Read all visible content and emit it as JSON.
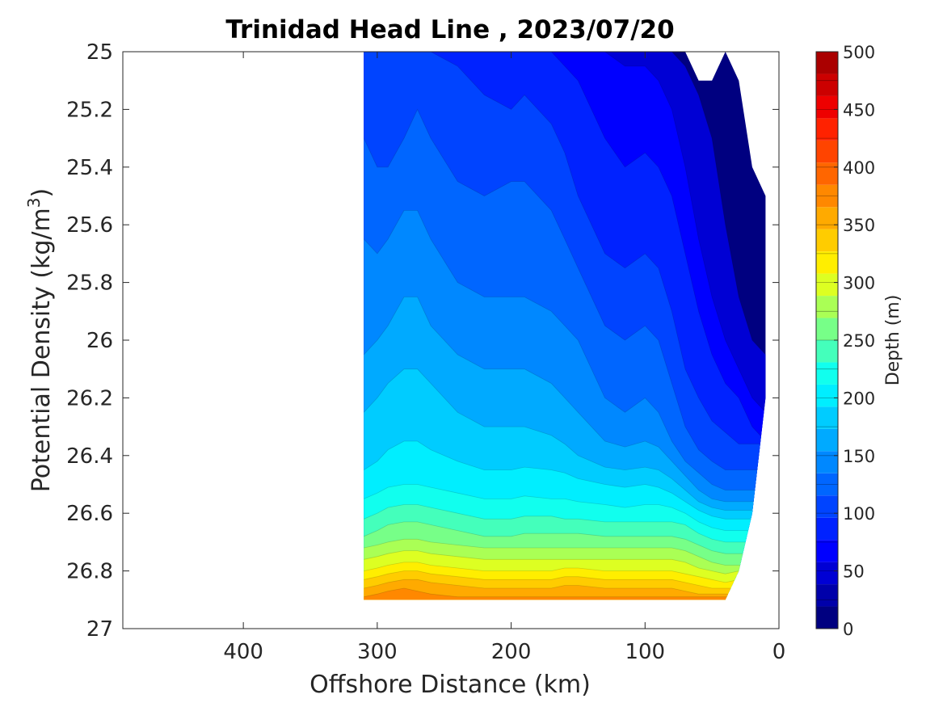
{
  "chart_data": {
    "type": "heatmap",
    "subtype": "filled-contour",
    "title": "Trinidad Head Line , 2023/07/20",
    "xlabel": "Offshore Distance (km)",
    "ylabel_main": "Potential Density (kg/m",
    "ylabel_sup": "3",
    "ylabel_close": ")",
    "colorbar_label": "Depth (m)",
    "xlim": [
      490,
      0
    ],
    "x_reversed": true,
    "ylim": [
      25,
      27
    ],
    "y_reversed": true,
    "xticks": [
      400,
      300,
      200,
      100,
      0
    ],
    "xtick_labels": [
      "400",
      "300",
      "200",
      "100",
      "0"
    ],
    "yticks": [
      25,
      25.2,
      25.4,
      25.6,
      25.8,
      26,
      26.2,
      26.4,
      26.6,
      26.8,
      27
    ],
    "ytick_labels": [
      "25",
      "25.2",
      "25.4",
      "25.6",
      "25.8",
      "26",
      "26.2",
      "26.4",
      "26.6",
      "26.8",
      "27"
    ],
    "colorbar_ticks": [
      0,
      50,
      100,
      150,
      200,
      250,
      300,
      350,
      400,
      450,
      500
    ],
    "colorbar_tick_labels": [
      "0",
      "50",
      "100",
      "150",
      "200",
      "250",
      "300",
      "350",
      "400",
      "450",
      "500"
    ],
    "colorbar_range": [
      0,
      500
    ],
    "contour_levels": [
      0,
      25,
      50,
      75,
      100,
      125,
      150,
      175,
      200,
      225,
      250,
      275,
      300,
      325,
      350,
      375,
      400,
      425,
      450,
      475,
      500
    ],
    "colormap": [
      "#000080",
      "#0000aa",
      "#0000d4",
      "#0000ff",
      "#0022ff",
      "#0044ff",
      "#0066ff",
      "#0088ff",
      "#00aaff",
      "#00ccff",
      "#00eeff",
      "#11ffee",
      "#44ffbb",
      "#77ff88",
      "#aaff55",
      "#ddff22",
      "#ffee00",
      "#ffcc00",
      "#ffaa00",
      "#ff8800",
      "#ff6600",
      "#ff4400",
      "#ff2200",
      "#ee0000",
      "#cc0000",
      "#aa0000"
    ],
    "grid": false,
    "colorbar_position": "right",
    "station_distances_km": [
      310,
      300,
      292,
      280,
      270,
      260,
      240,
      220,
      200,
      190,
      170,
      160,
      150,
      130,
      115,
      100,
      90,
      80,
      70,
      60,
      50,
      40,
      30,
      20,
      10
    ],
    "domain_top_density": [
      25,
      25,
      25,
      25,
      25,
      25,
      25,
      25,
      25,
      25,
      25,
      25,
      25,
      25,
      25,
      25,
      25,
      25,
      25,
      25.1,
      25.1,
      25,
      25.1,
      25.4,
      25.5
    ],
    "domain_bottom_density": [
      26.9,
      26.9,
      26.9,
      26.9,
      26.9,
      26.9,
      26.9,
      26.9,
      26.9,
      26.9,
      26.9,
      26.9,
      26.9,
      26.9,
      26.9,
      26.9,
      26.9,
      26.9,
      26.9,
      26.9,
      26.9,
      26.9,
      26.8,
      26.6,
      26.2
    ],
    "isopleths": [
      {
        "depth": 25,
        "density": [
          null,
          null,
          null,
          null,
          null,
          null,
          null,
          null,
          null,
          null,
          null,
          null,
          null,
          null,
          null,
          null,
          null,
          null,
          null,
          null,
          null,
          null,
          null,
          null,
          null
        ]
      },
      {
        "depth": 50,
        "density": [
          null,
          null,
          null,
          null,
          null,
          null,
          null,
          null,
          null,
          null,
          null,
          null,
          null,
          null,
          25.0,
          25.0,
          25.0,
          25.0,
          25.05,
          25.15,
          25.3,
          25.6,
          25.85,
          26.0,
          26.05
        ]
      },
      {
        "depth": 75,
        "density": [
          null,
          null,
          null,
          null,
          null,
          null,
          null,
          null,
          null,
          null,
          null,
          null,
          null,
          25.0,
          25.05,
          25.05,
          25.1,
          25.2,
          25.4,
          25.65,
          25.85,
          26.0,
          26.1,
          26.2,
          26.25
        ]
      },
      {
        "depth": 100,
        "density": [
          null,
          null,
          null,
          null,
          null,
          null,
          null,
          null,
          null,
          null,
          25.0,
          25.05,
          25.1,
          25.3,
          25.4,
          25.35,
          25.4,
          25.5,
          25.7,
          25.9,
          26.05,
          26.15,
          26.2,
          26.3,
          26.35
        ]
      },
      {
        "depth": 125,
        "density": [
          null,
          null,
          null,
          null,
          null,
          25.0,
          25.05,
          25.15,
          25.2,
          25.15,
          25.25,
          25.35,
          25.5,
          25.7,
          25.75,
          25.7,
          25.75,
          25.9,
          26.1,
          26.2,
          26.28,
          26.32,
          26.36,
          null,
          null
        ]
      },
      {
        "depth": 150,
        "density": [
          25.3,
          25.4,
          25.4,
          25.3,
          25.2,
          25.3,
          25.45,
          25.5,
          25.45,
          25.45,
          25.55,
          25.65,
          25.75,
          25.95,
          26.0,
          25.95,
          26.0,
          26.15,
          26.3,
          26.38,
          26.42,
          26.45,
          26.45,
          null,
          null
        ]
      },
      {
        "depth": 175,
        "density": [
          25.65,
          25.7,
          25.65,
          25.55,
          25.55,
          25.65,
          25.8,
          25.85,
          25.85,
          25.85,
          25.9,
          25.95,
          26.0,
          26.2,
          26.25,
          26.2,
          26.25,
          26.35,
          26.42,
          26.46,
          26.5,
          26.52,
          26.52,
          null,
          null
        ]
      },
      {
        "depth": 200,
        "density": [
          26.05,
          26.0,
          25.95,
          25.85,
          25.85,
          25.95,
          26.05,
          26.1,
          26.1,
          26.1,
          26.15,
          26.2,
          26.25,
          26.35,
          26.37,
          26.35,
          26.37,
          26.42,
          26.47,
          26.52,
          26.55,
          26.56,
          26.56,
          null,
          null
        ]
      },
      {
        "depth": 225,
        "density": [
          26.25,
          26.2,
          26.15,
          26.1,
          26.1,
          26.15,
          26.25,
          26.3,
          26.3,
          26.3,
          26.33,
          26.36,
          26.4,
          26.44,
          26.45,
          26.44,
          26.45,
          26.48,
          26.52,
          26.56,
          26.58,
          26.59,
          26.59,
          null,
          null
        ]
      },
      {
        "depth": 250,
        "density": [
          26.45,
          26.42,
          26.38,
          26.35,
          26.35,
          26.38,
          26.42,
          26.45,
          26.45,
          26.44,
          26.45,
          26.46,
          26.48,
          26.5,
          26.51,
          26.5,
          26.51,
          26.53,
          26.56,
          26.59,
          26.61,
          26.62,
          26.62,
          null,
          null
        ]
      },
      {
        "depth": 275,
        "density": [
          26.55,
          26.53,
          26.51,
          26.5,
          26.5,
          26.51,
          26.53,
          26.55,
          26.55,
          26.54,
          26.55,
          26.55,
          26.56,
          26.57,
          26.58,
          26.57,
          26.57,
          26.58,
          26.6,
          26.63,
          26.65,
          26.66,
          26.66,
          null,
          null
        ]
      },
      {
        "depth": 300,
        "density": [
          26.62,
          26.6,
          26.58,
          26.57,
          26.57,
          26.58,
          26.6,
          26.62,
          26.62,
          26.61,
          26.61,
          26.62,
          26.62,
          26.63,
          26.63,
          26.63,
          26.63,
          26.63,
          26.64,
          26.67,
          26.69,
          26.7,
          26.7,
          null,
          null
        ]
      },
      {
        "depth": 325,
        "density": [
          26.68,
          26.66,
          26.64,
          26.63,
          26.63,
          26.64,
          26.66,
          26.68,
          26.68,
          26.67,
          26.67,
          26.67,
          26.67,
          26.68,
          26.68,
          26.68,
          26.68,
          26.68,
          26.69,
          26.71,
          26.73,
          26.74,
          26.74,
          null,
          null
        ]
      },
      {
        "depth": 350,
        "density": [
          26.72,
          26.71,
          26.7,
          26.69,
          26.69,
          26.7,
          26.71,
          26.72,
          26.72,
          26.72,
          26.72,
          26.72,
          26.72,
          26.72,
          26.72,
          26.72,
          26.72,
          26.72,
          26.73,
          26.75,
          26.77,
          26.78,
          26.78,
          null,
          null
        ]
      },
      {
        "depth": 375,
        "density": [
          26.76,
          26.75,
          26.74,
          26.73,
          26.73,
          26.74,
          26.75,
          26.76,
          26.76,
          26.76,
          26.76,
          26.76,
          26.76,
          26.76,
          26.76,
          26.76,
          26.76,
          26.76,
          26.77,
          26.79,
          26.8,
          26.81,
          26.8,
          null,
          null
        ]
      },
      {
        "depth": 400,
        "density": [
          26.8,
          26.79,
          26.78,
          26.77,
          26.77,
          26.78,
          26.79,
          26.8,
          26.8,
          26.8,
          26.8,
          26.79,
          26.79,
          26.8,
          26.8,
          26.8,
          26.8,
          26.8,
          26.81,
          26.82,
          26.83,
          26.84,
          26.83,
          null,
          null
        ]
      },
      {
        "depth": 425,
        "density": [
          26.83,
          26.82,
          26.81,
          26.8,
          26.8,
          26.81,
          26.82,
          26.83,
          26.83,
          26.83,
          26.83,
          26.82,
          26.82,
          26.83,
          26.83,
          26.83,
          26.83,
          26.83,
          26.84,
          26.85,
          26.86,
          26.86,
          26.86,
          null,
          null
        ]
      },
      {
        "depth": 450,
        "density": [
          26.86,
          26.85,
          26.84,
          26.83,
          26.83,
          26.84,
          26.85,
          26.86,
          26.86,
          26.86,
          26.86,
          26.85,
          26.85,
          26.86,
          26.86,
          26.86,
          26.86,
          26.86,
          26.87,
          26.88,
          26.88,
          26.88,
          26.88,
          null,
          null
        ]
      },
      {
        "depth": 475,
        "density": [
          26.89,
          26.88,
          26.87,
          26.86,
          26.87,
          26.88,
          26.89,
          null,
          null,
          null,
          null,
          null,
          null,
          null,
          null,
          null,
          null,
          null,
          26.89,
          26.89,
          26.89,
          null,
          null,
          null,
          null
        ]
      }
    ]
  }
}
